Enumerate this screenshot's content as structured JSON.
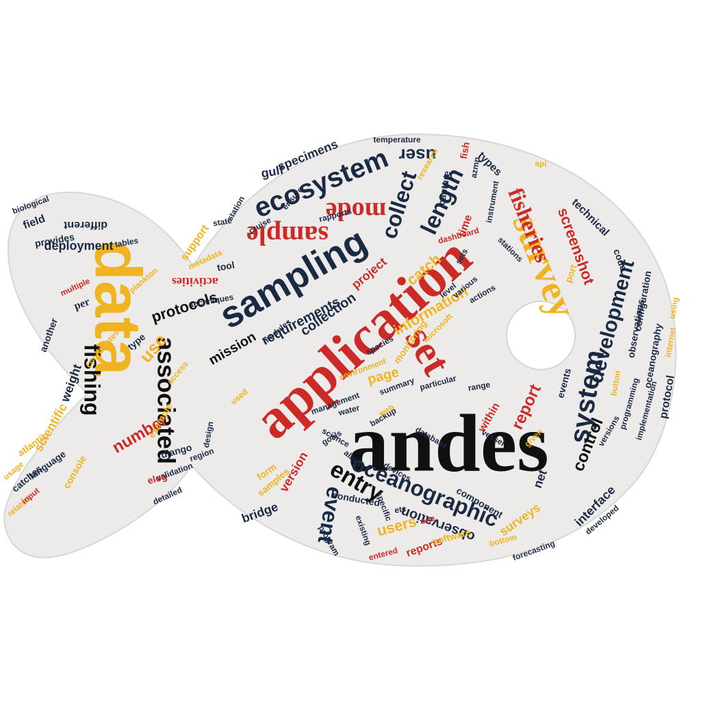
{
  "colors": {
    "background": "#ffffff",
    "fish_fill": "#ecebea",
    "fish_edge": "#d8d6d3",
    "red": "#cc2a27",
    "yellow": "#f0b321",
    "navy": "#1b2a44",
    "black": "#101010"
  },
  "words": [
    {
      "key": "andes",
      "text": "andes"
    },
    {
      "key": "application",
      "text": "application"
    },
    {
      "key": "data",
      "text": "data"
    },
    {
      "key": "survey",
      "text": "survey"
    },
    {
      "key": "sampling",
      "text": "sampling"
    },
    {
      "key": "set",
      "text": "set"
    },
    {
      "key": "ecosystem",
      "text": "ecosystem"
    },
    {
      "key": "sample",
      "text": "sample"
    },
    {
      "key": "mode",
      "text": "mode"
    },
    {
      "key": "user",
      "text": "user"
    },
    {
      "key": "length",
      "text": "length"
    },
    {
      "key": "collect",
      "text": "collect"
    },
    {
      "key": "associated",
      "text": "associated"
    },
    {
      "key": "fishing",
      "text": "fishing"
    },
    {
      "key": "oceanographic",
      "text": "oceanographic"
    },
    {
      "key": "entry",
      "text": "entry"
    },
    {
      "key": "event",
      "text": "event"
    },
    {
      "key": "system",
      "text": "system"
    },
    {
      "key": "development",
      "text": "development"
    },
    {
      "key": "control",
      "text": "control"
    },
    {
      "key": "report",
      "text": "report"
    },
    {
      "key": "fisheries",
      "text": "fisheries"
    },
    {
      "key": "screenshot",
      "text": "screenshot"
    },
    {
      "key": "protocols",
      "text": "protocols"
    },
    {
      "key": "mission",
      "text": "mission"
    },
    {
      "key": "requirements",
      "text": "requirements"
    },
    {
      "key": "collection",
      "text": "collection"
    },
    {
      "key": "information",
      "text": "information"
    },
    {
      "key": "catch",
      "text": "catch"
    },
    {
      "key": "project",
      "text": "project"
    },
    {
      "key": "page",
      "text": "page"
    },
    {
      "key": "use",
      "text": "use"
    },
    {
      "key": "number",
      "text": "number"
    },
    {
      "key": "users",
      "text": "users"
    },
    {
      "key": "version",
      "text": "version"
    },
    {
      "key": "observation",
      "text": "observation"
    },
    {
      "key": "net",
      "text": "net"
    },
    {
      "key": "interface",
      "text": "interface"
    },
    {
      "key": "surveys",
      "text": "surveys"
    },
    {
      "key": "bridge",
      "text": "bridge"
    },
    {
      "key": "reports",
      "text": "reports"
    },
    {
      "key": "specimens",
      "text": "specimens"
    },
    {
      "key": "gulf",
      "text": "gulf"
    },
    {
      "key": "activities",
      "text": "activities"
    },
    {
      "key": "support",
      "text": "support"
    },
    {
      "key": "deployment",
      "text": "deployment"
    },
    {
      "key": "different",
      "text": "different"
    },
    {
      "key": "field",
      "text": "field"
    },
    {
      "key": "provides",
      "text": "provides"
    },
    {
      "key": "biological",
      "text": "biological"
    },
    {
      "key": "per",
      "text": "per"
    },
    {
      "key": "multiple",
      "text": "multiple"
    },
    {
      "key": "another",
      "text": "another"
    },
    {
      "key": "weight",
      "text": "weight"
    },
    {
      "key": "scientific",
      "text": "scientific"
    },
    {
      "key": "atlantic",
      "text": "atlantic"
    },
    {
      "key": "language",
      "text": "language"
    },
    {
      "key": "catches",
      "text": "catches"
    },
    {
      "key": "types",
      "text": "types"
    },
    {
      "key": "technical",
      "text": "technical"
    },
    {
      "key": "code",
      "text": "code"
    },
    {
      "key": "configuration",
      "text": "configuration"
    },
    {
      "key": "oceanography",
      "text": "oceanography"
    },
    {
      "key": "programming",
      "text": "programming"
    },
    {
      "key": "implementation",
      "text": "implementation"
    },
    {
      "key": "protocol",
      "text": "protocol"
    },
    {
      "key": "observations",
      "text": "observations"
    },
    {
      "key": "events",
      "text": "events"
    },
    {
      "key": "within",
      "text": "within"
    },
    {
      "key": "component",
      "text": "component"
    },
    {
      "key": "software",
      "text": "software"
    },
    {
      "key": "conducted",
      "text": "conducted"
    },
    {
      "key": "science",
      "text": "science"
    },
    {
      "key": "allow",
      "text": "allow"
    },
    {
      "key": "existing",
      "text": "existing"
    },
    {
      "key": "time",
      "text": "time"
    },
    {
      "key": "fish",
      "text": "fish"
    },
    {
      "key": "research",
      "text": "research"
    },
    {
      "key": "validation",
      "text": "validation"
    },
    {
      "key": "tool",
      "text": "tool"
    },
    {
      "key": "metadata",
      "text": "metadata"
    },
    {
      "key": "plankton",
      "text": "plankton"
    },
    {
      "key": "type",
      "text": "type"
    },
    {
      "key": "django",
      "text": "django"
    },
    {
      "key": "techniques",
      "text": "techniques"
    },
    {
      "key": "stations",
      "text": "stations"
    },
    {
      "key": "elog",
      "text": "elog"
    },
    {
      "key": "example",
      "text": "example"
    },
    {
      "key": "design",
      "text": "design"
    },
    {
      "key": "backup",
      "text": "backup"
    },
    {
      "key": "monitoring",
      "text": "monitoring"
    },
    {
      "key": "used",
      "text": "used"
    },
    {
      "key": "dashboard",
      "text": "dashboard"
    },
    {
      "key": "api",
      "text": "api"
    },
    {
      "key": "modules",
      "text": "modules"
    },
    {
      "key": "capture",
      "text": "capture"
    },
    {
      "key": "rapports",
      "text": "rapports"
    },
    {
      "key": "station",
      "text": "station"
    },
    {
      "key": "environment",
      "text": "environment"
    },
    {
      "key": "database",
      "text": "database"
    },
    {
      "key": "summary",
      "text": "summary"
    },
    {
      "key": "devices",
      "text": "devices"
    },
    {
      "key": "form",
      "text": "form"
    },
    {
      "key": "samples",
      "text": "samples"
    },
    {
      "key": "goals",
      "text": "goals"
    },
    {
      "key": "access",
      "text": "access"
    },
    {
      "key": "coordinates",
      "text": "coordinates"
    },
    {
      "key": "console",
      "text": "console"
    },
    {
      "key": "usage",
      "text": "usage"
    },
    {
      "key": "related",
      "text": "related"
    },
    {
      "key": "input",
      "text": "input"
    },
    {
      "key": "developed",
      "text": "developed"
    },
    {
      "key": "button",
      "text": "button"
    },
    {
      "key": "internet",
      "text": "internet"
    },
    {
      "key": "using",
      "text": "using"
    },
    {
      "key": "instrument",
      "text": "instrument"
    },
    {
      "key": "azmp",
      "text": "azmp"
    },
    {
      "key": "temperature",
      "text": "temperature"
    },
    {
      "key": "actions",
      "text": "actions"
    },
    {
      "key": "port",
      "text": "port"
    },
    {
      "key": "web",
      "text": "web"
    },
    {
      "key": "water",
      "text": "water"
    },
    {
      "key": "region",
      "text": "region"
    },
    {
      "key": "detailed",
      "text": "detailed"
    },
    {
      "key": "tables",
      "text": "tables"
    },
    {
      "key": "sets",
      "text": "sets"
    },
    {
      "key": "ensure",
      "text": "ensure"
    },
    {
      "key": "cruise",
      "text": "cruise"
    },
    {
      "key": "species",
      "text": "species"
    },
    {
      "key": "entered",
      "text": "entered"
    },
    {
      "key": "given",
      "text": "given"
    },
    {
      "key": "particular",
      "text": "particular"
    },
    {
      "key": "range",
      "text": "range"
    },
    {
      "key": "level",
      "text": "level"
    },
    {
      "key": "microsoft",
      "text": "microsoft"
    },
    {
      "key": "various",
      "text": "various"
    },
    {
      "key": "management",
      "text": "management"
    },
    {
      "key": "bottom",
      "text": "bottom"
    },
    {
      "key": "vessel",
      "text": "vessel"
    },
    {
      "key": "versions",
      "text": "versions"
    },
    {
      "key": "state",
      "text": "state"
    },
    {
      "key": "etc",
      "text": "etc"
    },
    {
      "key": "one",
      "text": "one"
    },
    {
      "key": "program",
      "text": "program"
    },
    {
      "key": "specific",
      "text": "specific"
    },
    {
      "key": "forecasting",
      "text": "forecasting"
    }
  ]
}
